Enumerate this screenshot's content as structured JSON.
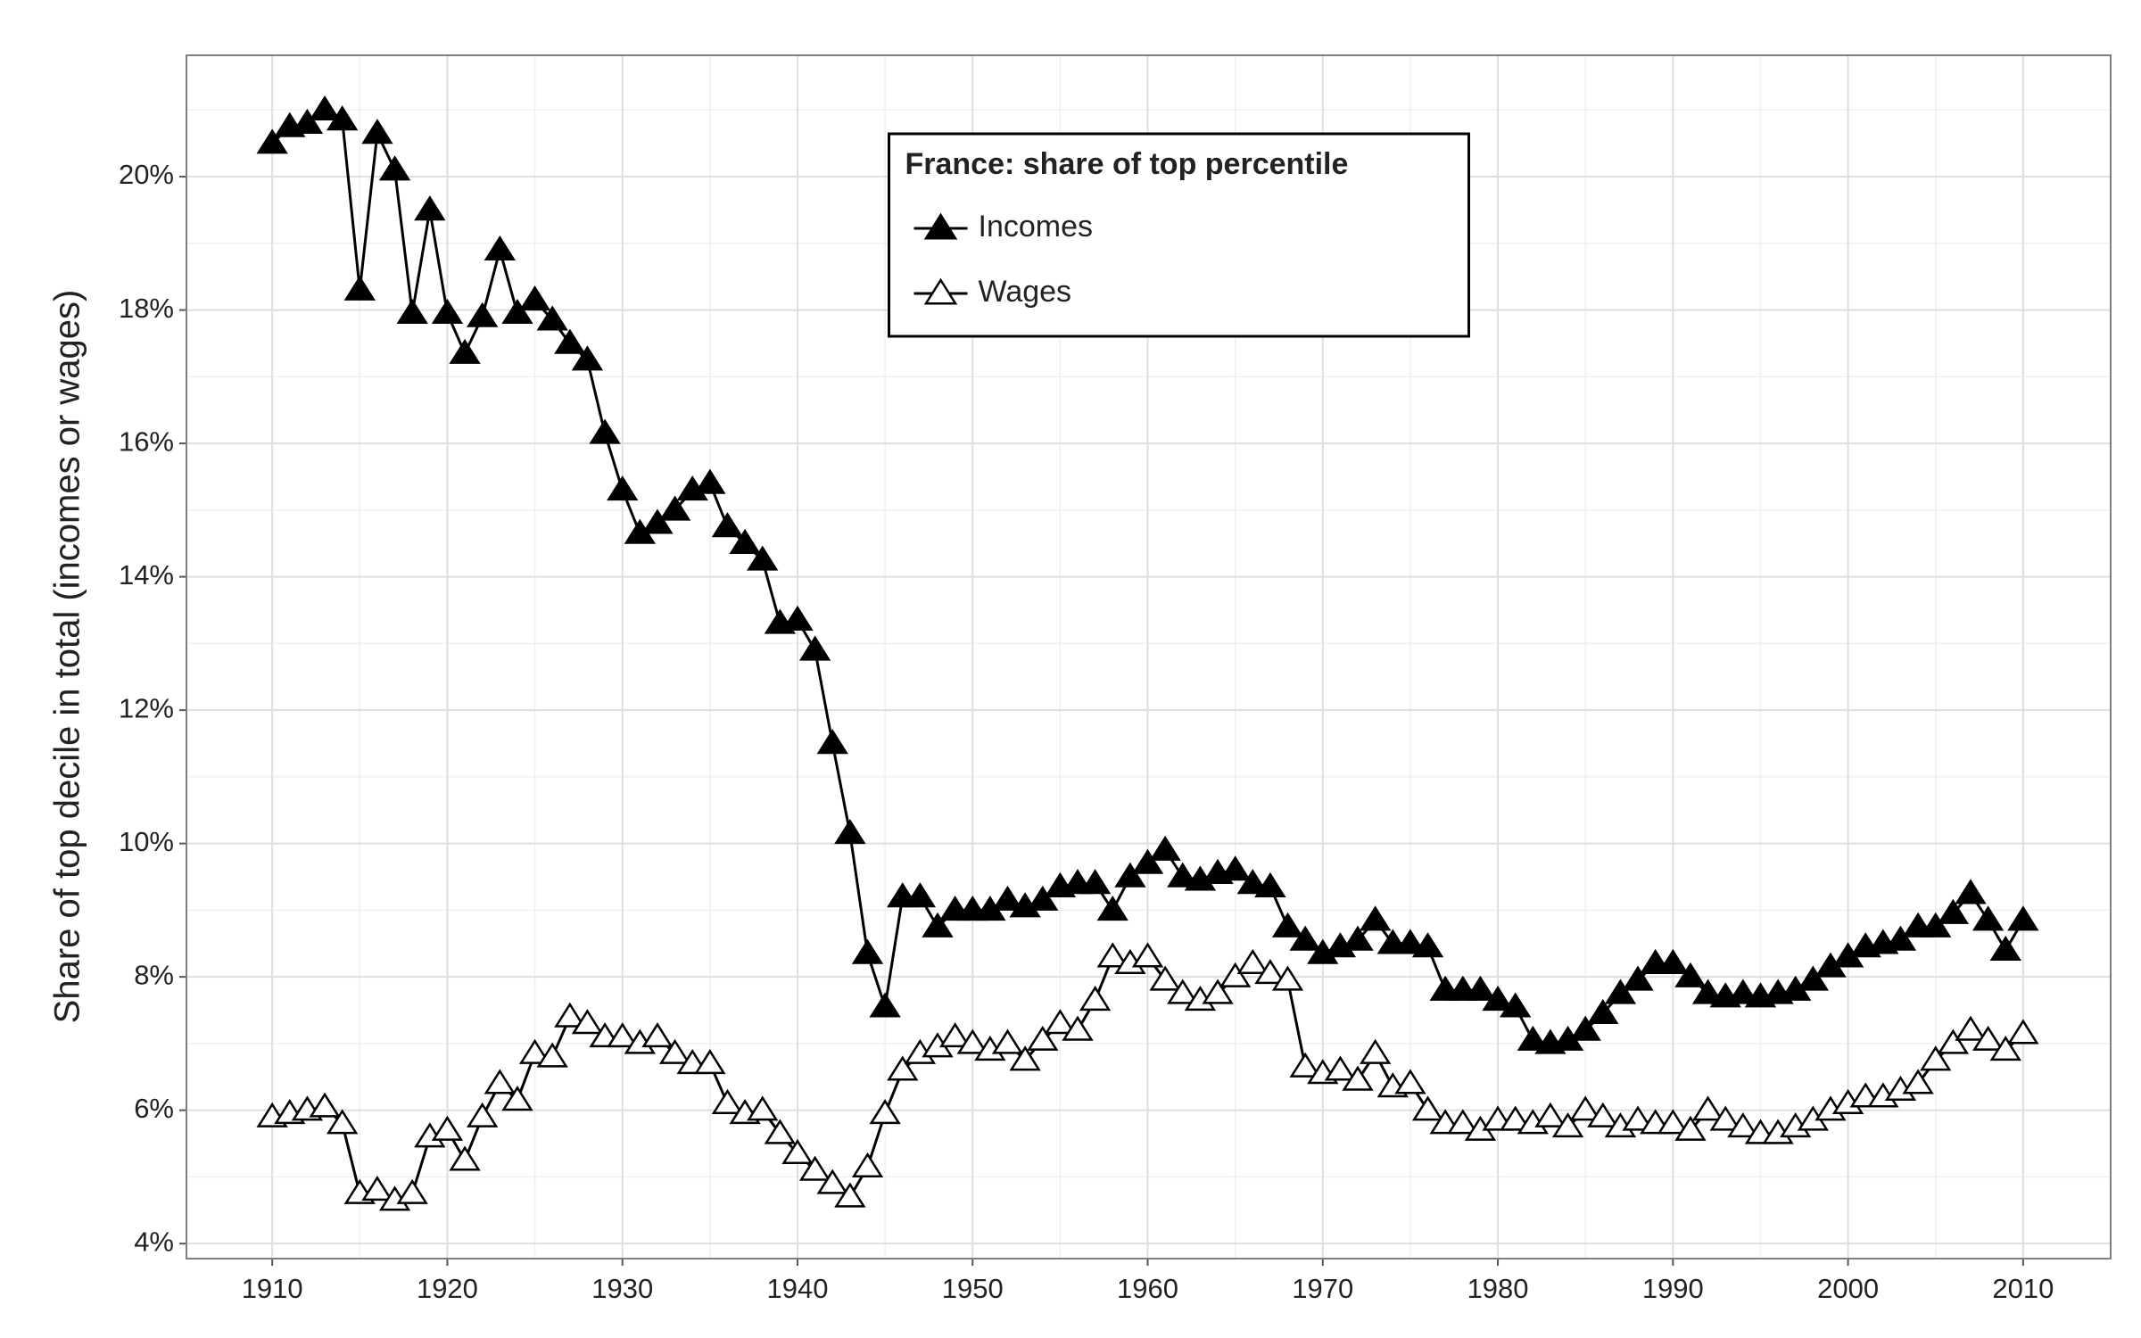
{
  "chart_data": {
    "type": "line",
    "y_label": "Share of top decile in total (incomes or wages)",
    "legend_title": "France: share of top percentile",
    "legend_position": "top",
    "grid": true,
    "x": [
      1910,
      1911,
      1912,
      1913,
      1914,
      1915,
      1916,
      1917,
      1918,
      1919,
      1920,
      1921,
      1922,
      1923,
      1924,
      1925,
      1926,
      1927,
      1928,
      1929,
      1930,
      1931,
      1932,
      1933,
      1934,
      1935,
      1936,
      1937,
      1938,
      1939,
      1940,
      1941,
      1942,
      1943,
      1944,
      1945,
      1946,
      1947,
      1948,
      1949,
      1950,
      1951,
      1952,
      1953,
      1954,
      1955,
      1956,
      1957,
      1958,
      1959,
      1960,
      1961,
      1962,
      1963,
      1964,
      1965,
      1966,
      1967,
      1968,
      1969,
      1970,
      1971,
      1972,
      1973,
      1974,
      1975,
      1976,
      1977,
      1978,
      1979,
      1980,
      1981,
      1982,
      1983,
      1984,
      1985,
      1986,
      1987,
      1988,
      1989,
      1990,
      1991,
      1992,
      1993,
      1994,
      1995,
      1996,
      1997,
      1998,
      1999,
      2000,
      2001,
      2002,
      2003,
      2004,
      2005,
      2006,
      2007,
      2008,
      2009,
      2010
    ],
    "series": [
      {
        "name": "Incomes",
        "color": "#000000",
        "marker_filled": true,
        "values": [
          20.5,
          20.75,
          20.8,
          21.0,
          20.85,
          18.3,
          20.65,
          20.1,
          17.95,
          19.5,
          17.95,
          17.35,
          17.9,
          18.9,
          17.95,
          18.15,
          17.85,
          17.5,
          17.25,
          16.15,
          15.3,
          14.65,
          14.8,
          15.0,
          15.3,
          15.4,
          14.75,
          14.5,
          14.25,
          13.3,
          13.35,
          12.9,
          11.5,
          10.15,
          8.35,
          7.55,
          9.2,
          9.2,
          8.75,
          9.0,
          9.0,
          9.0,
          9.15,
          9.05,
          9.15,
          9.35,
          9.4,
          9.4,
          9.0,
          9.5,
          9.7,
          9.9,
          9.5,
          9.45,
          9.55,
          9.6,
          9.4,
          9.35,
          8.75,
          8.55,
          8.35,
          8.45,
          8.55,
          8.85,
          8.5,
          8.5,
          8.45,
          7.8,
          7.8,
          7.8,
          7.65,
          7.55,
          7.05,
          7.0,
          7.05,
          7.2,
          7.45,
          7.75,
          7.95,
          8.2,
          8.2,
          8.0,
          7.75,
          7.7,
          7.75,
          7.7,
          7.75,
          7.8,
          7.95,
          8.15,
          8.3,
          8.45,
          8.5,
          8.55,
          8.75,
          8.75,
          8.95,
          9.25,
          8.85,
          8.4,
          8.85
        ]
      },
      {
        "name": "Wages",
        "color": "#000000",
        "marker_filled": false,
        "values": [
          5.9,
          5.95,
          6.0,
          6.05,
          5.8,
          4.75,
          4.8,
          4.65,
          4.75,
          5.6,
          5.7,
          5.25,
          5.9,
          6.4,
          6.15,
          6.85,
          6.8,
          7.4,
          7.3,
          7.1,
          7.1,
          7.0,
          7.1,
          6.85,
          6.7,
          6.7,
          6.1,
          5.95,
          6.0,
          5.65,
          5.35,
          5.1,
          4.9,
          4.7,
          5.15,
          5.95,
          6.6,
          6.85,
          6.95,
          7.1,
          7.0,
          6.9,
          7.0,
          6.75,
          7.05,
          7.3,
          7.2,
          7.65,
          8.3,
          8.2,
          8.3,
          7.95,
          7.75,
          7.65,
          7.75,
          8.0,
          8.2,
          8.05,
          7.95,
          6.65,
          6.55,
          6.6,
          6.45,
          6.85,
          6.35,
          6.4,
          6.0,
          5.8,
          5.8,
          5.7,
          5.85,
          5.85,
          5.8,
          5.9,
          5.75,
          6.0,
          5.9,
          5.75,
          5.85,
          5.8,
          5.8,
          5.7,
          6.0,
          5.85,
          5.75,
          5.65,
          5.65,
          5.75,
          5.85,
          6.0,
          6.1,
          6.2,
          6.2,
          6.3,
          6.4,
          6.75,
          7.0,
          7.2,
          7.05,
          6.9,
          7.15
        ]
      }
    ],
    "xlim": [
      1905.1,
      2015
    ],
    "xticks": [
      1910,
      1920,
      1930,
      1940,
      1950,
      1960,
      1970,
      1980,
      1990,
      2000,
      2010
    ],
    "minor_xticks": [
      1915,
      1925,
      1935,
      1945,
      1955,
      1965,
      1975,
      1985,
      1995,
      2005
    ],
    "ylim": [
      3.775,
      21.82
    ],
    "yticks": [
      {
        "value": 4,
        "label": "4%"
      },
      {
        "value": 6,
        "label": "6%"
      },
      {
        "value": 8,
        "label": "8%"
      },
      {
        "value": 10,
        "label": "10%"
      },
      {
        "value": 12,
        "label": "12%"
      },
      {
        "value": 14,
        "label": "14%"
      },
      {
        "value": 16,
        "label": "16%"
      },
      {
        "value": 18,
        "label": "18%"
      },
      {
        "value": 20,
        "label": "20%"
      }
    ],
    "minor_yticks": [
      5,
      7,
      9,
      11,
      13,
      15,
      17,
      19,
      21
    ]
  }
}
